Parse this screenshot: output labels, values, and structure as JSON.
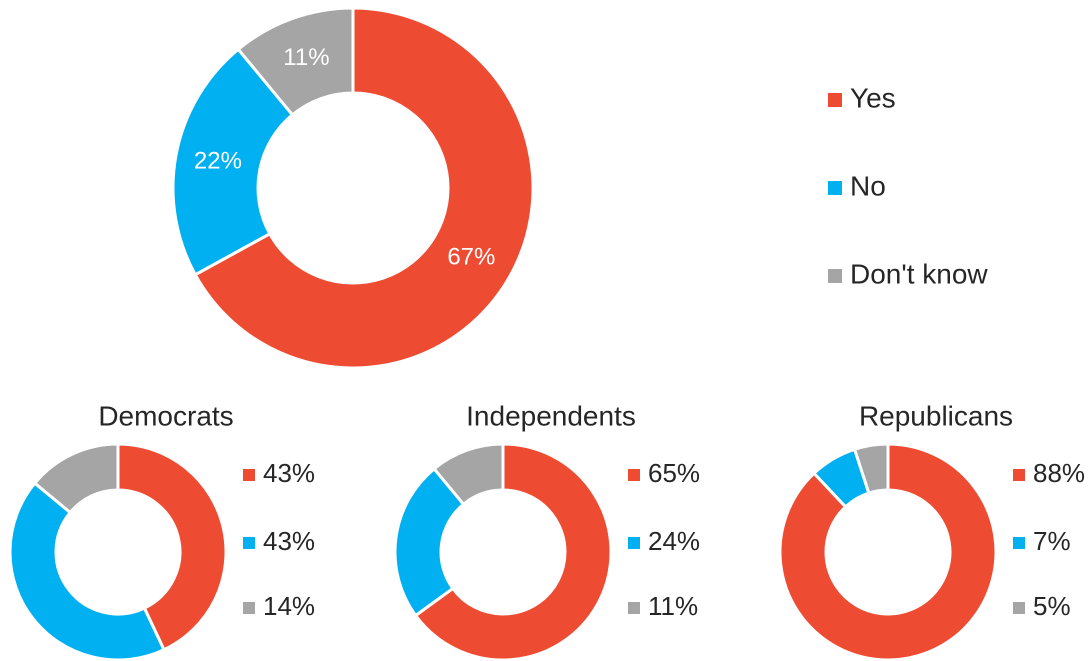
{
  "chart_data": [
    {
      "type": "donut",
      "categories": [
        "Yes",
        "No",
        "Don't know"
      ],
      "values": [
        67,
        22,
        11
      ],
      "value_labels": [
        "67%",
        "22%",
        "11%"
      ],
      "colors": [
        "#ee4b33",
        "#00b0f0",
        "#a5a5a5"
      ]
    },
    {
      "type": "donut",
      "title": "Democrats",
      "values": [
        43,
        43,
        14
      ],
      "value_labels": [
        "43%",
        "43%",
        "14%"
      ],
      "colors": [
        "#ee4b33",
        "#00b0f0",
        "#a5a5a5"
      ]
    },
    {
      "type": "donut",
      "title": "Independents",
      "values": [
        65,
        24,
        11
      ],
      "value_labels": [
        "65%",
        "24%",
        "11%"
      ],
      "colors": [
        "#ee4b33",
        "#00b0f0",
        "#a5a5a5"
      ]
    },
    {
      "type": "donut",
      "title": "Republicans",
      "values": [
        88,
        7,
        5
      ],
      "value_labels": [
        "88%",
        "7%",
        "5%"
      ],
      "colors": [
        "#ee4b33",
        "#00b0f0",
        "#a5a5a5"
      ]
    }
  ]
}
